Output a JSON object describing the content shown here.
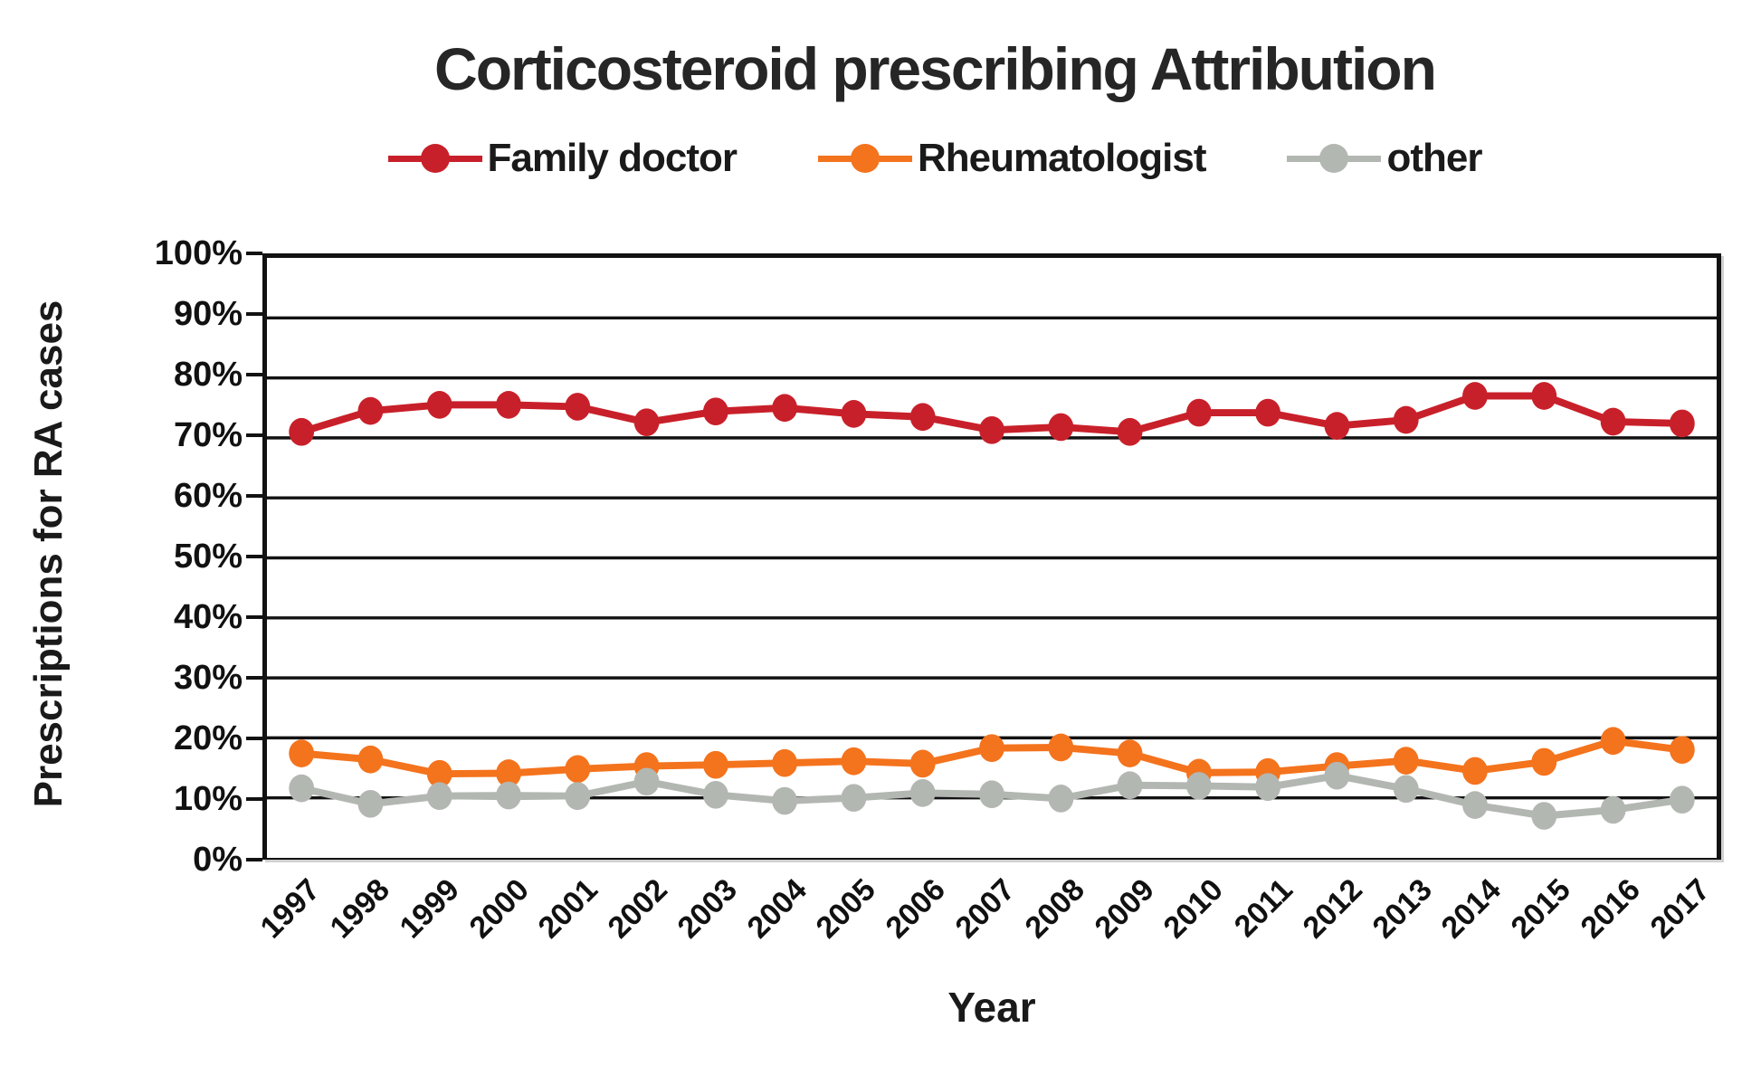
{
  "chart_data": {
    "type": "line",
    "title": "Corticosteroid prescribing Attribution",
    "xlabel": "Year",
    "ylabel": "Prescriptions for RA cases",
    "ylim": [
      0,
      100
    ],
    "y_tick_step": 10,
    "y_tick_suffix": "%",
    "grid": true,
    "legend_position": "top-center",
    "categories": [
      "1997",
      "1998",
      "1999",
      "2000",
      "2001",
      "2002",
      "2003",
      "2004",
      "2005",
      "2006",
      "2007",
      "2008",
      "2009",
      "2010",
      "2011",
      "2012",
      "2013",
      "2014",
      "2015",
      "2016",
      "2017"
    ],
    "series": [
      {
        "name": "Family doctor",
        "color": "#c8202a",
        "values": [
          71,
          74.5,
          75.5,
          75.5,
          75.2,
          72.6,
          74.4,
          75,
          74,
          73.5,
          71.3,
          71.8,
          71,
          74.2,
          74.2,
          72,
          73,
          77,
          77,
          72.7,
          72.4
        ]
      },
      {
        "name": "Rheumatologist",
        "color": "#f4731d",
        "values": [
          17.4,
          16.4,
          14,
          14.1,
          14.8,
          15.3,
          15.5,
          15.8,
          16.1,
          15.7,
          18.3,
          18.4,
          17.4,
          14.2,
          14.3,
          15.3,
          16.2,
          14.5,
          16,
          19.5,
          18
        ]
      },
      {
        "name": "other",
        "color": "#b3b7b2",
        "values": [
          11.6,
          9,
          10.3,
          10.4,
          10.3,
          12.7,
          10.5,
          9.5,
          10,
          10.8,
          10.6,
          9.9,
          12.1,
          12,
          11.8,
          13.7,
          11.5,
          8.8,
          7,
          8,
          9.7
        ]
      }
    ]
  }
}
